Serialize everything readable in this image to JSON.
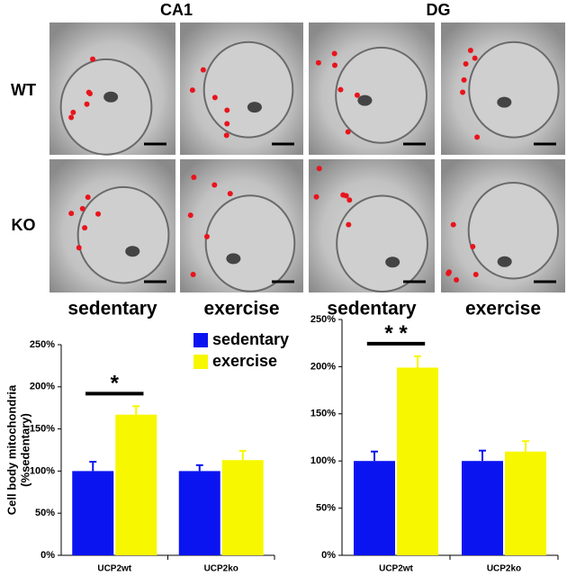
{
  "figure": {
    "region_labels": [
      "CA1",
      "DG"
    ],
    "row_labels": [
      "WT",
      "KO"
    ],
    "column_labels": [
      "sedentary",
      "exercise",
      "sedentary",
      "exercise"
    ]
  },
  "chart_data": [
    {
      "type": "bar",
      "ylabel": [
        "Cell body mitochondria",
        "(%sedentary)"
      ],
      "categories": [
        "UCP2wt",
        "UCP2ko"
      ],
      "series": [
        {
          "name": "sedentary",
          "color": "#0a14f0",
          "values": [
            100,
            100
          ],
          "errors": [
            11,
            7
          ]
        },
        {
          "name": "exercise",
          "color": "#f7f700",
          "values": [
            167,
            113
          ],
          "errors": [
            10,
            11
          ]
        }
      ],
      "ylim": [
        0,
        250
      ],
      "yticks": [
        {
          "value": 0,
          "label": "0%"
        },
        {
          "value": 50,
          "label": "50%"
        },
        {
          "value": 100,
          "label": "100%"
        },
        {
          "value": 150,
          "label": "150%"
        },
        {
          "value": 200,
          "label": "200%"
        },
        {
          "value": 250,
          "label": "250%"
        }
      ],
      "annotation": "*"
    },
    {
      "type": "bar",
      "categories": [
        "UCP2wt",
        "UCP2ko"
      ],
      "series": [
        {
          "color": "#0a14f0",
          "values": [
            100,
            100
          ],
          "errors": [
            10,
            11
          ]
        },
        {
          "color": "#f7f700",
          "values": [
            199,
            110
          ],
          "errors": [
            12,
            11
          ]
        }
      ],
      "ylim": [
        0,
        250
      ],
      "yticks": [
        {
          "value": 0,
          "label": "0%"
        },
        {
          "value": 50,
          "label": "50%"
        },
        {
          "value": 100,
          "label": "100%"
        },
        {
          "value": 150,
          "label": "150%"
        },
        {
          "value": 200,
          "label": "200%"
        },
        {
          "value": 250,
          "label": "250%"
        }
      ],
      "annotation": "* *"
    }
  ]
}
